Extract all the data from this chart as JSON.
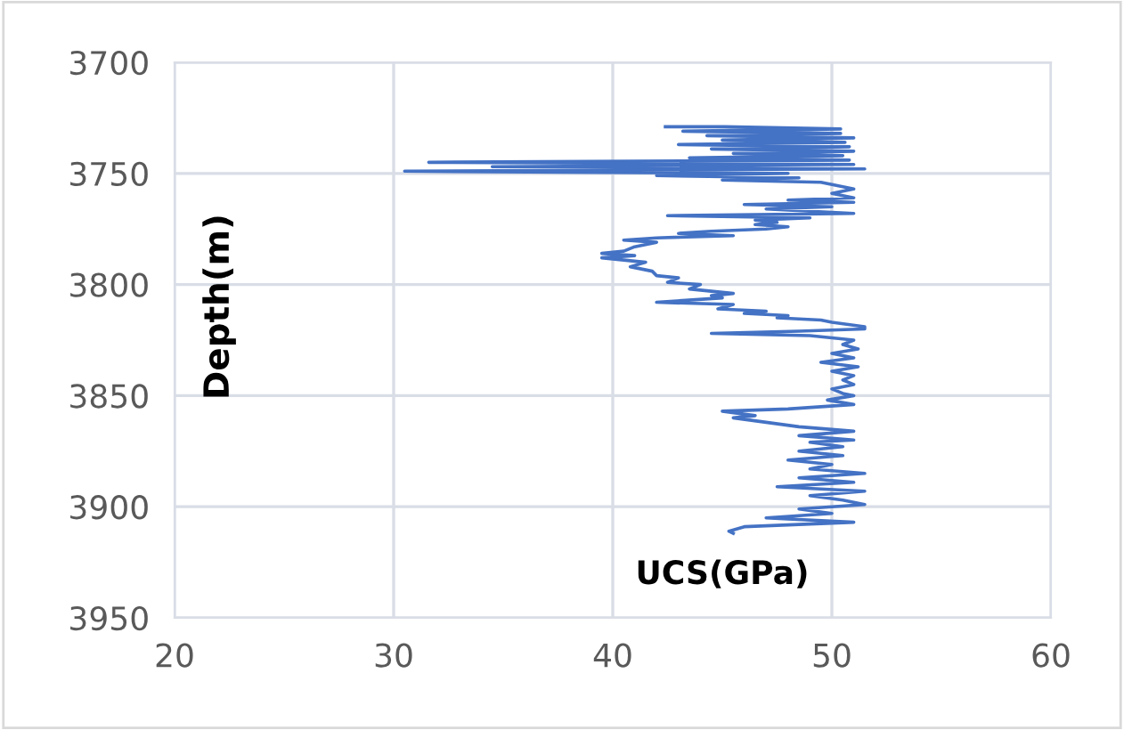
{
  "chart_data": {
    "type": "line",
    "xlabel": "UCS(GPa)",
    "ylabel": "Depth(m)",
    "xlim": [
      20,
      60
    ],
    "xticks": [
      20,
      30,
      40,
      50,
      60
    ],
    "ylim": [
      3950,
      3700
    ],
    "yticks": [
      3700,
      3750,
      3800,
      3850,
      3900,
      3950
    ],
    "grid": true,
    "marker": "none",
    "line_style": "solid",
    "series": [
      {
        "color": "#4472c4",
        "x": [
          42.4,
          45.1,
          50.4,
          43.2,
          50.4,
          44.3,
          51.0,
          45.0,
          50.6,
          43.0,
          50.8,
          44.5,
          51.0,
          45.5,
          50.5,
          43.5,
          50.8,
          31.6,
          51.0,
          34.5,
          51.5,
          30.5,
          48.0,
          42.0,
          48.5,
          45.0,
          49.5,
          50.5,
          51.0,
          50.0,
          51.0,
          48.0,
          51.0,
          46.0,
          50.0,
          47.0,
          51.0,
          42.5,
          49.0,
          46.5,
          47.5,
          46.5,
          48.0,
          47.0,
          44.5,
          43.0,
          45.5,
          42.0,
          40.5,
          42.0,
          41.0,
          40.5,
          39.5,
          41.0,
          39.5,
          40.5,
          41.5,
          40.8,
          41.8,
          42.0,
          43.0,
          42.5,
          44.0,
          43.5,
          45.5,
          44.5,
          45.0,
          42.0,
          45.5,
          44.8,
          47.0,
          46.0,
          48.0,
          47.5,
          49.5,
          50.0,
          51.5,
          51.5,
          48.5,
          44.5,
          49.0,
          51.0,
          50.5,
          51.2,
          50.0,
          51.0,
          49.5,
          51.2,
          50.0,
          51.0,
          50.5,
          51.0,
          50.0,
          50.5,
          51.0,
          49.8,
          51.0,
          48.0,
          45.0,
          46.5,
          45.5,
          47.0,
          48.5,
          51.0,
          48.5,
          51.0,
          49.0,
          50.5,
          48.5,
          50.5,
          48.0,
          50.0,
          49.0,
          51.5,
          48.5,
          51.0,
          47.5,
          51.5,
          49.0,
          50.5,
          51.5,
          48.5,
          50.0,
          47.0,
          51.0,
          46.0,
          45.3,
          45.5
        ],
        "values": [
          3729,
          3729,
          3730,
          3731,
          3732,
          3733,
          3734,
          3735,
          3736,
          3737,
          3738,
          3739,
          3740,
          3741,
          3742,
          3743,
          3744,
          3745,
          3746,
          3747,
          3748,
          3749,
          3750,
          3751,
          3752,
          3753,
          3754,
          3756,
          3757,
          3759,
          3761,
          3762,
          3763,
          3764,
          3765,
          3766,
          3768,
          3769,
          3770,
          3771,
          3772,
          3773,
          3774,
          3775,
          3776,
          3777,
          3778,
          3779,
          3780,
          3781,
          3783,
          3785,
          3786,
          3787,
          3788,
          3789,
          3790,
          3792,
          3794,
          3796,
          3797,
          3799,
          3800,
          3802,
          3804,
          3805,
          3806,
          3808,
          3809,
          3811,
          3812,
          3813,
          3814,
          3815,
          3816,
          3817,
          3819,
          3820,
          3821,
          3822,
          3823,
          3825,
          3827,
          3829,
          3831,
          3833,
          3835,
          3837,
          3839,
          3841,
          3843,
          3845,
          3847,
          3849,
          3850,
          3852,
          3854,
          3856,
          3857,
          3859,
          3860,
          3862,
          3864,
          3866,
          3868,
          3870,
          3871,
          3873,
          3875,
          3877,
          3879,
          3881,
          3883,
          3885,
          3887,
          3889,
          3891,
          3893,
          3895,
          3897,
          3899,
          3901,
          3903,
          3905,
          3907,
          3909,
          3911,
          3912
        ]
      }
    ]
  }
}
